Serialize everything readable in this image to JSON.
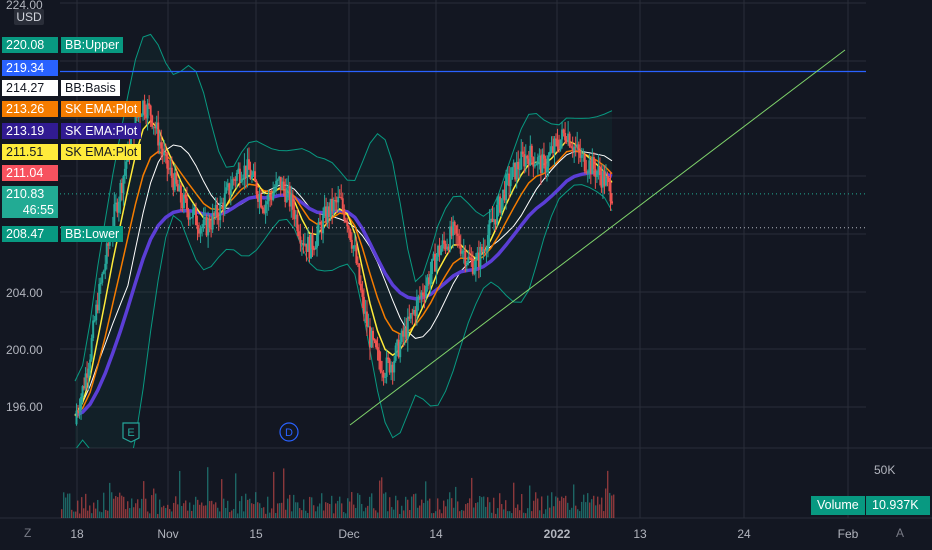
{
  "chart_data": {
    "type": "candlestick",
    "currency": "USD",
    "y_ticks": [
      "224.00",
      "204.00",
      "200.00",
      "196.00"
    ],
    "x_ticks": [
      "18",
      "Nov",
      "15",
      "Dec",
      "14",
      "2022",
      "13",
      "24",
      "Feb"
    ],
    "ylim": [
      193,
      225
    ],
    "close_series": [
      195.4,
      197.2,
      199.8,
      203.4,
      206.1,
      208.9,
      211.2,
      213.6,
      215.9,
      217.1,
      216.5,
      214.8,
      212.9,
      211.8,
      210.4,
      209.7,
      209.1,
      208.4,
      208.9,
      209.6,
      210.7,
      211.9,
      212.6,
      212.4,
      211.2,
      210.1,
      210.8,
      211.6,
      210.9,
      209.6,
      207.8,
      207.1,
      207.9,
      209.2,
      209.9,
      210.3,
      209.1,
      206.7,
      203.2,
      200.8,
      199.4,
      198.7,
      199.2,
      200.4,
      201.6,
      202.9,
      204.1,
      205.3,
      206.8,
      207.4,
      208.1,
      207.3,
      206.2,
      205.9,
      207.1,
      208.6,
      209.9,
      211.4,
      212.3,
      213.1,
      213.6,
      213.2,
      212.7,
      213.7,
      214.5,
      215.2,
      214.1,
      213.2,
      212.9,
      212.4,
      211.8,
      210.9
    ],
    "labels": {
      "bb_upper": {
        "value": "220.08",
        "name": "BB:Upper",
        "color": "#089981"
      },
      "hline": {
        "value": "219.34",
        "color": "#2962ff"
      },
      "bb_basis": {
        "value": "214.27",
        "name": "BB:Basis",
        "color": "#ffffff"
      },
      "ema1": {
        "value": "213.26",
        "name": "SK EMA:Plot",
        "color": "#f57c00"
      },
      "ema2": {
        "value": "213.19",
        "name": "SK EMA:Plot",
        "color": "#311b92"
      },
      "ema3": {
        "value": "211.51",
        "name": "SK EMA:Plot",
        "color": "#ffeb3b"
      },
      "last_red": {
        "value": "211.04",
        "color": "#f7525f"
      },
      "last": {
        "value": "210.83",
        "countdown": "46:55",
        "color": "#22ab94"
      },
      "bb_lower": {
        "value": "208.47",
        "name": "BB:Lower",
        "color": "#089981"
      }
    },
    "events": [
      {
        "date": "Oct 26",
        "glyph": "E",
        "kind": "earnings"
      },
      {
        "date": "Nov 18",
        "glyph": "D",
        "kind": "dividend"
      }
    ],
    "volume": {
      "name": "Volume",
      "value": "10.937K",
      "axis_tick": "50K"
    },
    "colors": {
      "up": "#26a69a",
      "down": "#ef5350",
      "background": "#131722",
      "grid": "#2a2e39"
    }
  },
  "ui": {
    "bottom_left_icon": "Z",
    "bottom_right_icon": "A"
  }
}
